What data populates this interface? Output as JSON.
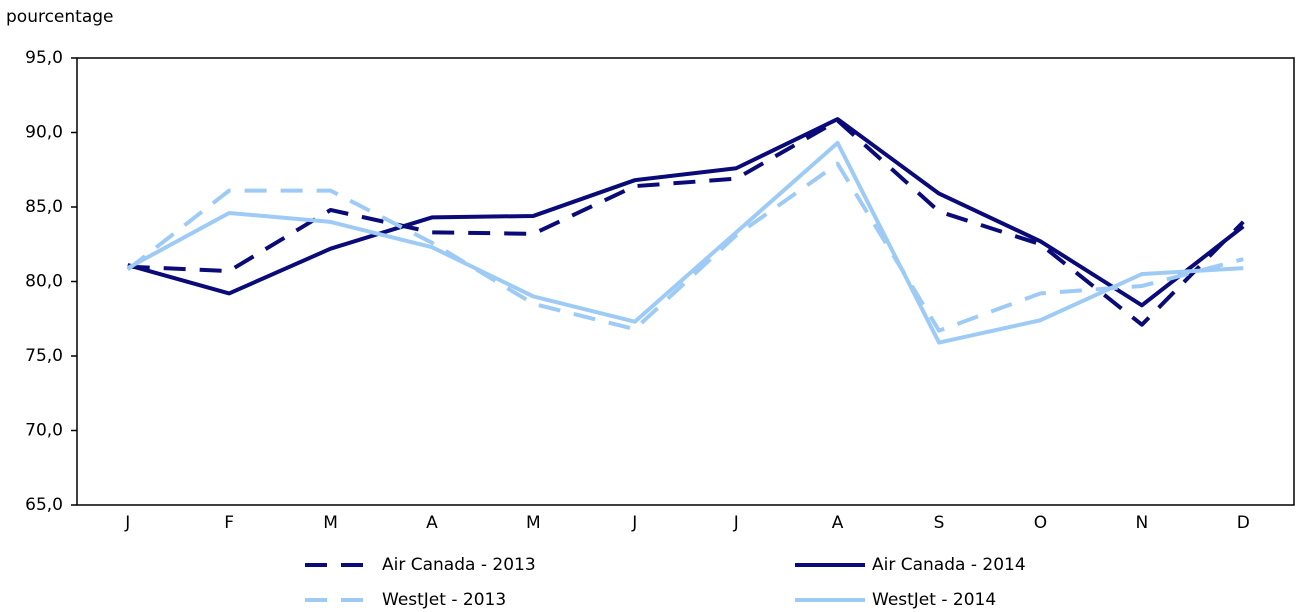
{
  "chart_data": {
    "type": "line",
    "y_axis_label": "pourcentage",
    "categories": [
      "J",
      "F",
      "M",
      "A",
      "M",
      "J",
      "J",
      "A",
      "S",
      "O",
      "N",
      "D"
    ],
    "series": [
      {
        "name": "Air Canada - 2013",
        "color": "#0a0a78",
        "line_style": "dashed",
        "values": [
          81.0,
          80.7,
          84.8,
          83.3,
          83.2,
          86.4,
          86.9,
          90.8,
          84.7,
          82.5,
          77.1,
          84.0
        ]
      },
      {
        "name": "Air Canada - 2014",
        "color": "#0a0a78",
        "line_style": "solid",
        "values": [
          81.1,
          79.2,
          82.2,
          84.3,
          84.4,
          86.8,
          87.6,
          90.9,
          85.9,
          82.7,
          78.4,
          83.7
        ]
      },
      {
        "name": "WestJet - 2013",
        "color": "#9ecbf5",
        "line_style": "dashed",
        "values": [
          80.8,
          86.1,
          86.1,
          82.6,
          78.5,
          76.8,
          83.1,
          87.9,
          76.7,
          79.2,
          79.7,
          81.5
        ]
      },
      {
        "name": "WestJet - 2014",
        "color": "#9ecbf5",
        "line_style": "solid",
        "values": [
          80.9,
          84.6,
          84.0,
          82.3,
          79.0,
          77.3,
          83.3,
          89.3,
          75.9,
          77.4,
          80.5,
          80.9
        ]
      }
    ],
    "ylim": [
      65,
      95
    ],
    "yticks": [
      {
        "value": 65,
        "label": "65,0"
      },
      {
        "value": 70,
        "label": "70,0"
      },
      {
        "value": 75,
        "label": "75,0"
      },
      {
        "value": 80,
        "label": "80,0"
      },
      {
        "value": 85,
        "label": "85,0"
      },
      {
        "value": 90,
        "label": "90,0"
      },
      {
        "value": 95,
        "label": "95,0"
      }
    ],
    "grid": false
  }
}
